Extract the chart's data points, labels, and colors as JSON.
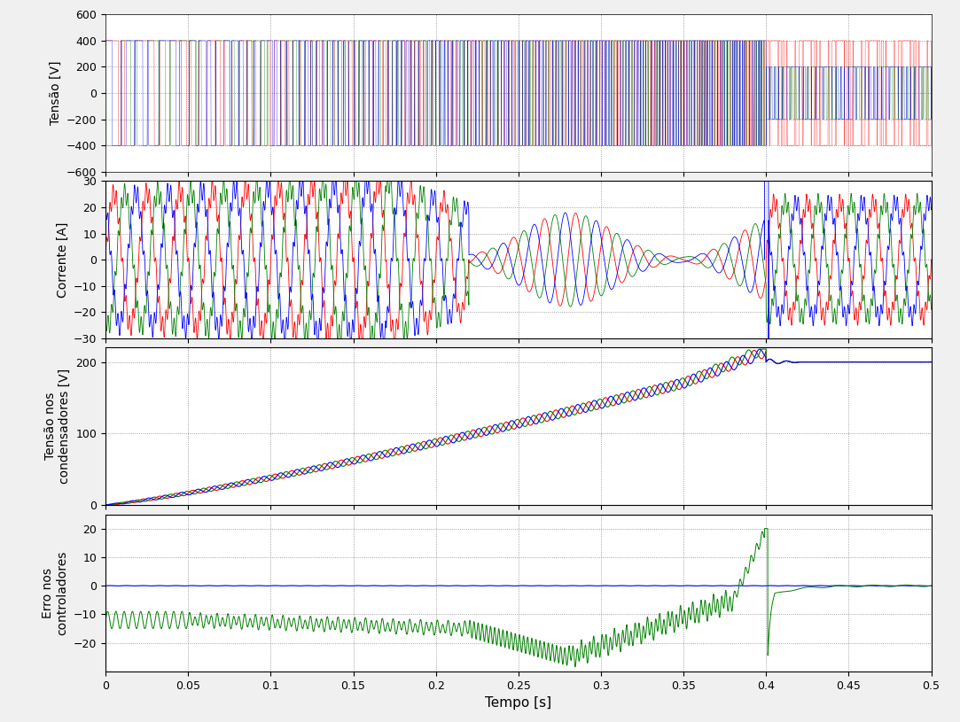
{
  "title": "",
  "xlim": [
    0,
    0.5
  ],
  "dt": 5e-05,
  "subplot1": {
    "ylabel": "Tensão [V]",
    "ylim": [
      -600,
      600
    ],
    "yticks": [
      -600,
      -400,
      -200,
      0,
      200,
      400,
      600
    ],
    "colors": [
      "red",
      "green",
      "blue"
    ]
  },
  "subplot2": {
    "ylabel": "Corrente [A]",
    "ylim": [
      -30,
      30
    ],
    "yticks": [
      -30,
      -20,
      -10,
      0,
      10,
      20,
      30
    ],
    "colors": [
      "red",
      "green",
      "blue"
    ]
  },
  "subplot3": {
    "ylabel": "Tensão nos\ncondensadores [V]",
    "ylim": [
      0,
      220
    ],
    "yticks": [
      0,
      100,
      200
    ],
    "colors": [
      "red",
      "green",
      "blue"
    ]
  },
  "subplot4": {
    "ylabel": "Erro nos\ncontroladores",
    "ylim": [
      -30,
      25
    ],
    "yticks": [
      -20,
      -10,
      0,
      10,
      20
    ],
    "xlabel": "Tempo [s]",
    "colors": [
      "blue",
      "green"
    ]
  },
  "xticks": [
    0,
    0.05,
    0.1,
    0.15,
    0.2,
    0.25,
    0.3,
    0.35,
    0.4,
    0.45,
    0.5
  ],
  "background_color": "#ffffff",
  "grid_color": "#aaaaaa",
  "figure_facecolor": "#f0f0f0"
}
